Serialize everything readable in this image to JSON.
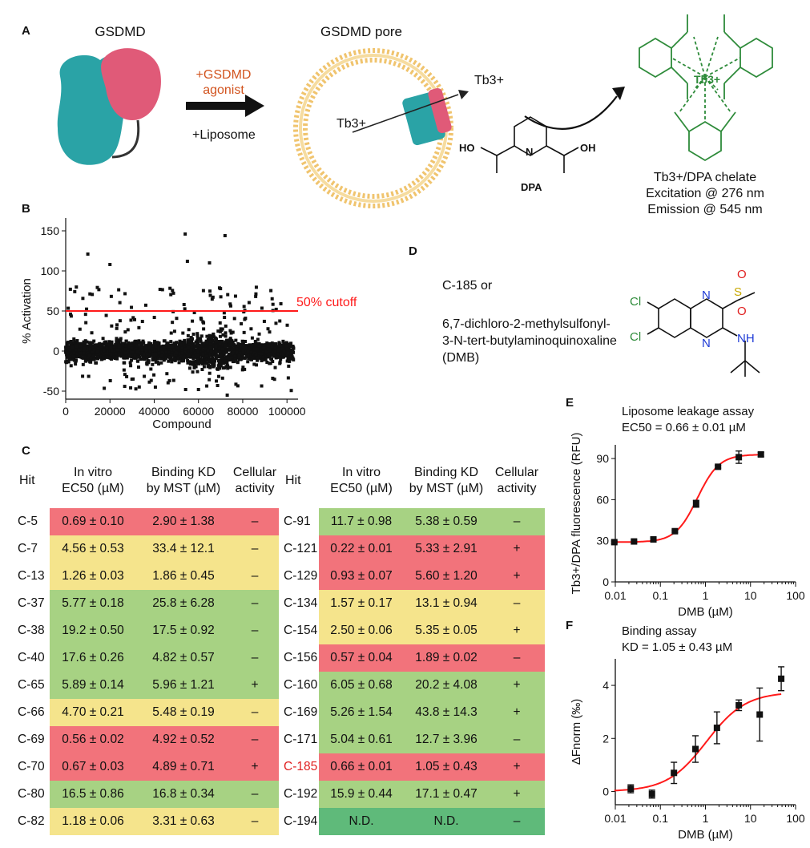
{
  "panelA": {
    "label": "A",
    "gsdmd_title": "GSDMD",
    "pore_title": "GSDMD pore",
    "agonist_line1": "+GSDMD",
    "agonist_line2": "agonist",
    "liposome": "+Liposome",
    "tb_inside": "Tb3+",
    "tb_outside": "Tb3+",
    "dpa_label": "DPA",
    "chelate_center": "Tb3+",
    "chelate_caption": "Tb3+/DPA chelate",
    "excitation": "Excitation @ 276 nm",
    "emission": "Emission @ 545 nm",
    "colors": {
      "gsdmd_teal": "#2aa3a6",
      "gsdmd_pink": "#e05a78",
      "agonist_text": "#d2541f",
      "chelate_green": "#2e8b3a",
      "lipid": "#f0c46e"
    }
  },
  "panelB": {
    "label": "B",
    "cutoff_label": "50% cutoff",
    "cutoff_color": "#ff1a1a"
  },
  "panelC": {
    "label": "C",
    "headers": {
      "hit": "Hit",
      "ec50_line1": "In vitro",
      "ec50_line2": "EC50 (µM)",
      "kd_line1": "Binding KD",
      "kd_line2": "by MST (µM)",
      "cell_line1": "Cellular",
      "cell_line2": "activity"
    },
    "left_rows": [
      {
        "hit": "C-5",
        "ec50": "0.69 ± 0.10",
        "kd": "2.90 ± 1.38",
        "cell": "–",
        "color": "red"
      },
      {
        "hit": "C-7",
        "ec50": "4.56 ± 0.53",
        "kd": "33.4 ± 12.1",
        "cell": "–",
        "color": "yel"
      },
      {
        "hit": "C-13",
        "ec50": "1.26 ± 0.03",
        "kd": "1.86 ± 0.45",
        "cell": "–",
        "color": "yel"
      },
      {
        "hit": "C-37",
        "ec50": "5.77 ± 0.18",
        "kd": "25.8 ± 6.28",
        "cell": "–",
        "color": "grn"
      },
      {
        "hit": "C-38",
        "ec50": "19.2 ± 0.50",
        "kd": "17.5 ± 0.92",
        "cell": "–",
        "color": "grn"
      },
      {
        "hit": "C-40",
        "ec50": "17.6 ± 0.26",
        "kd": "4.82 ± 0.57",
        "cell": "–",
        "color": "grn"
      },
      {
        "hit": "C-65",
        "ec50": "5.89 ± 0.14",
        "kd": "5.96 ± 1.21",
        "cell": "+",
        "color": "grn"
      },
      {
        "hit": "C-66",
        "ec50": "4.70 ± 0.21",
        "kd": "5.48 ± 0.19",
        "cell": "–",
        "color": "yel"
      },
      {
        "hit": "C-69",
        "ec50": "0.56 ± 0.02",
        "kd": "4.92 ± 0.52",
        "cell": "–",
        "color": "red"
      },
      {
        "hit": "C-70",
        "ec50": "0.67 ± 0.03",
        "kd": "4.89 ± 0.71",
        "cell": "+",
        "color": "red"
      },
      {
        "hit": "C-80",
        "ec50": "16.5 ± 0.86",
        "kd": "16.8 ± 0.34",
        "cell": "–",
        "color": "grn"
      },
      {
        "hit": "C-82",
        "ec50": "1.18 ± 0.06",
        "kd": "3.31 ± 0.63",
        "cell": "–",
        "color": "yel"
      }
    ],
    "right_rows": [
      {
        "hit": "C-91",
        "ec50": "11.7 ± 0.98",
        "kd": "5.38 ± 0.59",
        "cell": "–",
        "color": "grn"
      },
      {
        "hit": "C-121",
        "ec50": "0.22 ± 0.01",
        "kd": "5.33 ± 2.91",
        "cell": "+",
        "color": "red"
      },
      {
        "hit": "C-129",
        "ec50": "0.93 ± 0.07",
        "kd": "5.60 ± 1.20",
        "cell": "+",
        "color": "red"
      },
      {
        "hit": "C-134",
        "ec50": "1.57 ± 0.17",
        "kd": "13.1 ± 0.94",
        "cell": "–",
        "color": "yel"
      },
      {
        "hit": "C-154",
        "ec50": "2.50 ± 0.06",
        "kd": "5.35 ± 0.05",
        "cell": "+",
        "color": "yel"
      },
      {
        "hit": "C-156",
        "ec50": "0.57 ± 0.04",
        "kd": "1.89 ± 0.02",
        "cell": "–",
        "color": "red"
      },
      {
        "hit": "C-160",
        "ec50": "6.05 ± 0.68",
        "kd": "20.2 ± 4.08",
        "cell": "+",
        "color": "grn"
      },
      {
        "hit": "C-169",
        "ec50": "5.26 ± 1.54",
        "kd": "43.8 ± 14.3",
        "cell": "+",
        "color": "grn"
      },
      {
        "hit": "C-171",
        "ec50": "5.04 ± 0.61",
        "kd": "12.7 ± 3.96",
        "cell": "–",
        "color": "grn"
      },
      {
        "hit": "C-185",
        "ec50": "0.66 ± 0.01",
        "kd": "1.05 ± 0.43",
        "cell": "+",
        "color": "red",
        "highlight": true
      },
      {
        "hit": "C-192",
        "ec50": "15.9 ± 0.44",
        "kd": "17.1 ± 0.47",
        "cell": "+",
        "color": "grn"
      },
      {
        "hit": "C-194",
        "ec50": "N.D.",
        "kd": "N.D.",
        "cell": "–",
        "color": "dgr"
      }
    ]
  },
  "panelD": {
    "label": "D",
    "line1": "C-185 or",
    "line2": "6,7-dichloro-2-methylsulfonyl-",
    "line3": "3-N-tert-butylaminoquinoxaline",
    "line4": "(DMB)",
    "atoms": {
      "cl": "Cl",
      "n": "N",
      "s": "S",
      "o": "O",
      "nh": "NH"
    }
  },
  "chart_data": [
    {
      "type": "scatter",
      "panel": "B",
      "title": "",
      "xlabel": "Compound",
      "ylabel": "% Activation",
      "xlim": [
        0,
        105000
      ],
      "ylim": [
        -60,
        160
      ],
      "xticks": [
        "0",
        "20000",
        "40000",
        "60000",
        "80000",
        "100000"
      ],
      "yticks": [
        "-50",
        "0",
        "50",
        "100",
        "150"
      ],
      "n_points_approx": 105000,
      "notable_points": [
        {
          "x": 10000,
          "y": 121
        },
        {
          "x": 54000,
          "y": 146
        },
        {
          "x": 72000,
          "y": 144
        },
        {
          "x": 20000,
          "y": 108
        },
        {
          "x": 55000,
          "y": 112
        },
        {
          "x": 65000,
          "y": 110
        },
        {
          "x": 73000,
          "y": -55
        },
        {
          "x": 60000,
          "y": -48
        }
      ],
      "cutoff": {
        "y": 50,
        "label": "50% cutoff"
      }
    },
    {
      "type": "line",
      "panel": "E",
      "title": "Liposome leakage assay",
      "annotation": "EC50 = 0.66 ± 0.01 µM",
      "xlabel": "DMB (µM)",
      "ylabel": "Tb3+/DPA fluorescence (RFU)",
      "xscale": "log",
      "xlim": [
        0.01,
        100
      ],
      "ylim": [
        0,
        100
      ],
      "xticks": [
        "0.01",
        "0.1",
        "1",
        "10",
        "100"
      ],
      "yticks": [
        "0",
        "30",
        "60",
        "90"
      ],
      "points": [
        {
          "x": 0.0095,
          "y": 29,
          "err": 0.8
        },
        {
          "x": 0.026,
          "y": 29.5,
          "err": 0.8
        },
        {
          "x": 0.07,
          "y": 31,
          "err": 1.2
        },
        {
          "x": 0.21,
          "y": 37,
          "err": 0.8
        },
        {
          "x": 0.62,
          "y": 57,
          "err": 2.5
        },
        {
          "x": 1.9,
          "y": 84,
          "err": 1
        },
        {
          "x": 5.5,
          "y": 91,
          "err": 4.5
        },
        {
          "x": 17,
          "y": 93,
          "err": 1.5
        }
      ],
      "fit": {
        "bottom": 29,
        "top": 93,
        "ec50": 0.66,
        "hill": 1.8
      }
    },
    {
      "type": "line",
      "panel": "F",
      "title": "Binding assay",
      "annotation": "KD = 1.05 ± 0.43 µM",
      "xlabel": "DMB (µM)",
      "ylabel": "ΔFnorm (‰)",
      "xscale": "log",
      "xlim": [
        0.01,
        100
      ],
      "ylim": [
        -0.5,
        5
      ],
      "xticks": [
        "0.01",
        "0.1",
        "1",
        "10",
        "100"
      ],
      "yticks": [
        "0",
        "2",
        "4"
      ],
      "points": [
        {
          "x": 0.022,
          "y": 0.1,
          "err": 0.15
        },
        {
          "x": 0.065,
          "y": -0.1,
          "err": 0.15
        },
        {
          "x": 0.2,
          "y": 0.7,
          "err": 0.4
        },
        {
          "x": 0.6,
          "y": 1.6,
          "err": 0.5
        },
        {
          "x": 1.8,
          "y": 2.4,
          "err": 0.6
        },
        {
          "x": 5.5,
          "y": 3.25,
          "err": 0.2
        },
        {
          "x": 16,
          "y": 2.9,
          "err": 1.0
        },
        {
          "x": 48,
          "y": 4.25,
          "err": 0.45
        }
      ],
      "fit": {
        "bottom": 0,
        "top": 3.75,
        "ec50": 1.05,
        "hill": 1.0
      }
    }
  ]
}
